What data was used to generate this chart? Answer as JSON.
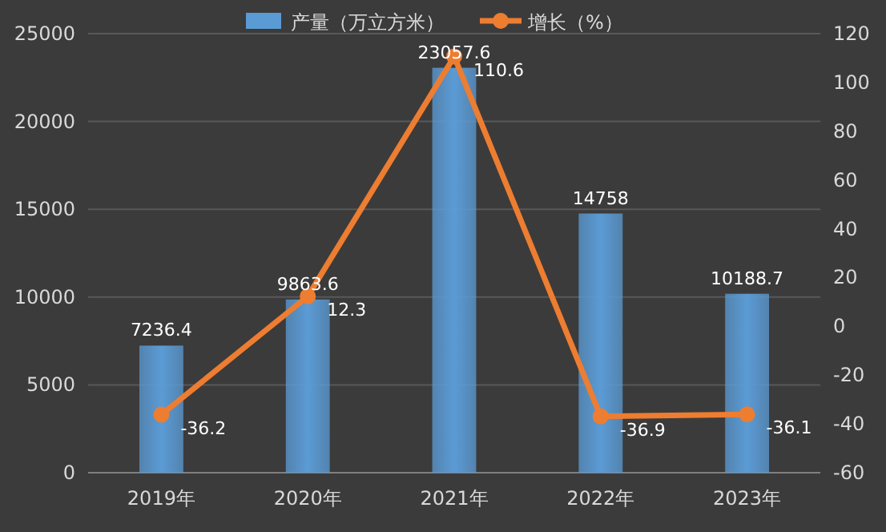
{
  "chart_data": {
    "type": "bar",
    "categories": [
      "2019年",
      "2020年",
      "2021年",
      "2022年",
      "2023年"
    ],
    "series": [
      {
        "name": "产量（万立方米）",
        "color": "#5b9bd5",
        "values": [
          7236.4,
          9863.6,
          23057.6,
          14758,
          10188.7
        ]
      },
      {
        "name": "增长（%）",
        "type": "line",
        "axis": "y2",
        "color": "#ed7d31",
        "values": [
          -36.2,
          12.3,
          110.6,
          -36.9,
          -36.1
        ]
      }
    ],
    "ylim": [
      0,
      25000
    ],
    "yticks": [
      0,
      5000,
      10000,
      15000,
      20000,
      25000
    ],
    "y2lim": [
      -60,
      120
    ],
    "y2ticks": [
      -60,
      -40,
      -20,
      0,
      20,
      40,
      60,
      80,
      100,
      120
    ],
    "grid": "y",
    "legend": "top",
    "marker": "circle",
    "line_style": "solid",
    "data_labels": true
  }
}
